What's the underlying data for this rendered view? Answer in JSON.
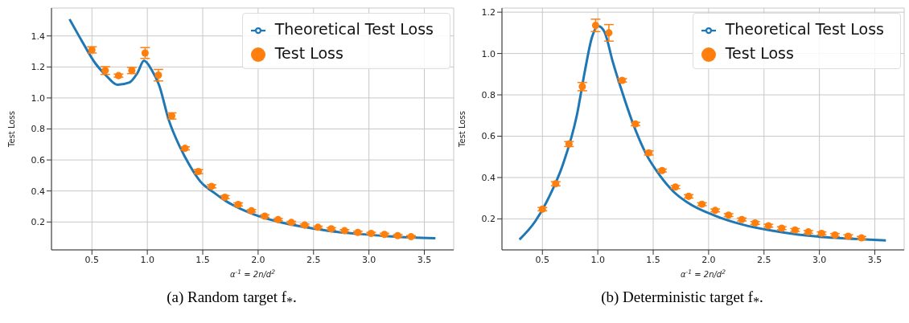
{
  "chart_data": [
    {
      "type": "line",
      "xlabel": "α$^{-1}$ = 2n/d$^{2}$",
      "ylabel": "Test Loss",
      "annotations": [
        "(a) Random target f$_{*}$."
      ],
      "xlim": [
        0.135,
        3.765
      ],
      "ylim": [
        0.02,
        1.58
      ],
      "xticks": [
        0.5,
        {
          "value": 1,
          "label": "1.0"
        },
        1.5,
        {
          "value": 2,
          "label": "2.0"
        },
        2.5,
        {
          "value": 3,
          "label": "3.0"
        },
        3.5
      ],
      "yticks": [
        0.2,
        0.4,
        0.6,
        0.8,
        {
          "value": 1,
          "label": "1.0"
        },
        1.2,
        1.4
      ],
      "grid": true,
      "legend": "top right",
      "series": [
        {
          "name": "Theoretical Test Loss",
          "marker": "none",
          "color": "#1f77b4",
          "x": [
            0.298,
            0.412,
            0.529,
            0.624,
            0.73,
            0.838,
            0.91,
            0.97,
            1.04,
            1.105,
            1.195,
            1.29,
            1.386,
            1.48,
            1.6,
            1.714,
            1.957,
            2.19,
            2.43,
            2.67,
            2.91,
            3.14,
            3.38,
            3.6
          ],
          "values": [
            1.508,
            1.364,
            1.225,
            1.148,
            1.085,
            1.1,
            1.16,
            1.24,
            1.18,
            1.085,
            0.855,
            0.69,
            0.56,
            0.46,
            0.39,
            0.333,
            0.25,
            0.2,
            0.166,
            0.139,
            0.123,
            0.11,
            0.1,
            0.095
          ]
        },
        {
          "name": "Test Loss",
          "type": "scatter",
          "marker": "circle",
          "color": "#ff7f0e",
          "x": [
            0.5,
            0.62,
            0.74,
            0.86,
            0.98,
            1.1,
            1.22,
            1.34,
            1.46,
            1.58,
            1.7,
            1.82,
            1.94,
            2.06,
            2.18,
            2.3,
            2.42,
            2.54,
            2.66,
            2.78,
            2.9,
            3.02,
            3.14,
            3.26,
            3.38
          ],
          "values": [
            1.31,
            1.177,
            1.144,
            1.177,
            1.29,
            1.147,
            0.884,
            0.675,
            0.525,
            0.43,
            0.36,
            0.313,
            0.272,
            0.238,
            0.215,
            0.197,
            0.18,
            0.166,
            0.156,
            0.144,
            0.133,
            0.126,
            0.12,
            0.112,
            0.105
          ],
          "errors": [
            0.02,
            0.025,
            0.01,
            0.02,
            0.035,
            0.037,
            0.02,
            0.01,
            0.013,
            0.01,
            0.01,
            0.01,
            0.008,
            0.008,
            0.007,
            0.007,
            0.007,
            0.007,
            0.007,
            0.007,
            0.007,
            0.007,
            0.007,
            0.007,
            0.007
          ]
        }
      ]
    },
    {
      "type": "line",
      "xlabel": "α$^{-1}$ = 2n/d$^{2}$",
      "ylabel": "Test Loss",
      "annotations": [
        "(b) Deterministic target f$_{*}$."
      ],
      "xlim": [
        0.135,
        3.765
      ],
      "ylim": [
        0.05,
        1.22
      ],
      "xticks": [
        0.5,
        {
          "value": 1,
          "label": "1.0"
        },
        1.5,
        {
          "value": 2,
          "label": "2.0"
        },
        2.5,
        {
          "value": 3,
          "label": "3.0"
        },
        3.5
      ],
      "yticks": [
        0.2,
        0.4,
        0.6,
        0.8,
        {
          "value": 1,
          "label": "1.0"
        },
        1.2
      ],
      "grid": true,
      "legend": "top right",
      "series": [
        {
          "name": "Theoretical Test Loss",
          "marker": "none",
          "color": "#1f77b4",
          "x": [
            0.293,
            0.435,
            0.56,
            0.685,
            0.81,
            0.885,
            0.9475,
            1.005,
            1.06,
            1.135,
            1.21,
            1.31,
            1.435,
            1.56,
            1.685,
            1.81,
            2.06,
            2.31,
            2.56,
            2.81,
            3.06,
            3.31,
            3.6
          ],
          "values": [
            0.1,
            0.188,
            0.306,
            0.463,
            0.699,
            0.92,
            1.079,
            1.133,
            1.105,
            0.96,
            0.83,
            0.672,
            0.515,
            0.41,
            0.331,
            0.279,
            0.215,
            0.172,
            0.144,
            0.124,
            0.111,
            0.103,
            0.096
          ]
        },
        {
          "name": "Test Loss",
          "type": "scatter",
          "marker": "circle",
          "color": "#ff7f0e",
          "x": [
            0.5,
            0.62,
            0.74,
            0.86,
            0.98,
            1.1,
            1.22,
            1.34,
            1.46,
            1.58,
            1.7,
            1.82,
            1.94,
            2.06,
            2.18,
            2.3,
            2.42,
            2.54,
            2.66,
            2.78,
            2.9,
            3.02,
            3.14,
            3.26,
            3.38
          ],
          "values": [
            0.247,
            0.37,
            0.562,
            0.84,
            1.136,
            1.1,
            0.87,
            0.659,
            0.519,
            0.434,
            0.354,
            0.309,
            0.271,
            0.241,
            0.218,
            0.197,
            0.18,
            0.167,
            0.155,
            0.146,
            0.137,
            0.13,
            0.122,
            0.116,
            0.108
          ],
          "errors": [
            0.008,
            0.01,
            0.012,
            0.02,
            0.03,
            0.04,
            0.008,
            0.008,
            0.01,
            0.007,
            0.007,
            0.008,
            0.007,
            0.007,
            0.007,
            0.007,
            0.007,
            0.007,
            0.007,
            0.007,
            0.007,
            0.007,
            0.007,
            0.007,
            0.007
          ]
        }
      ]
    }
  ]
}
